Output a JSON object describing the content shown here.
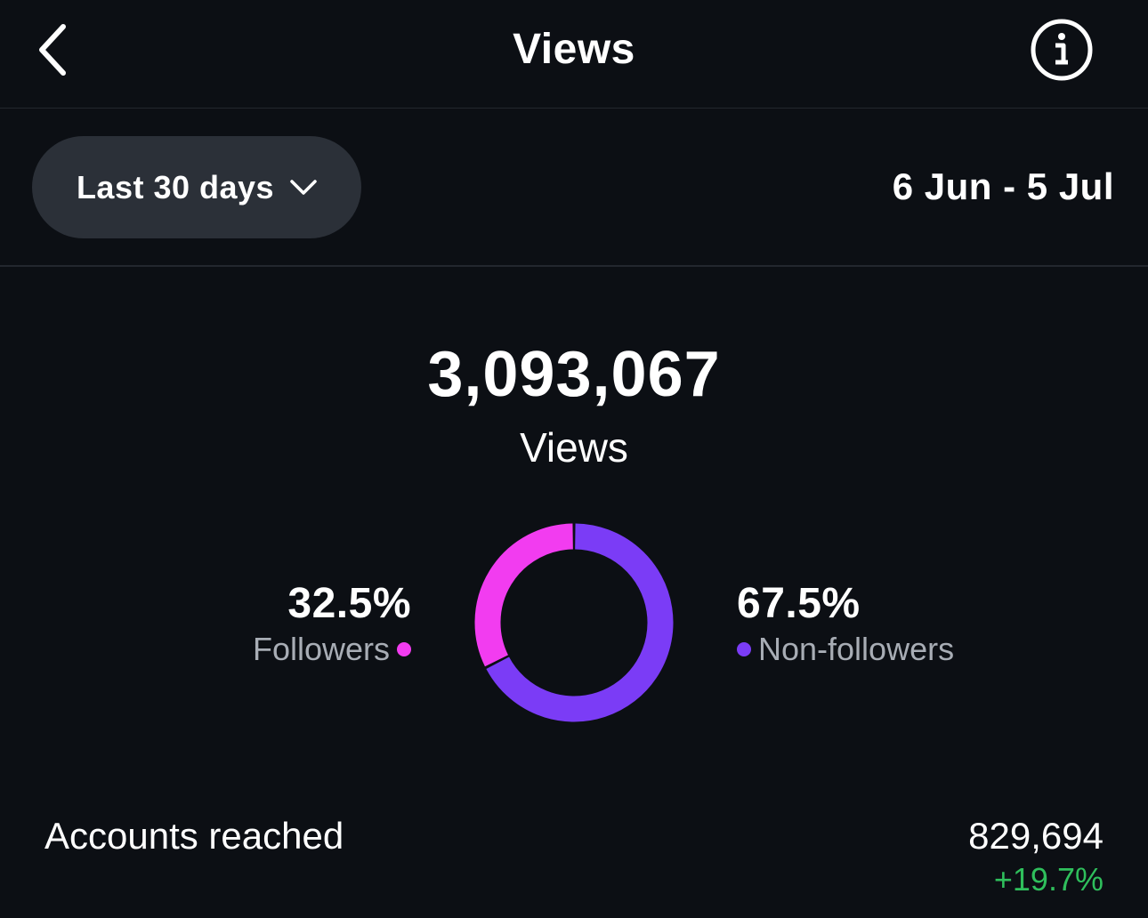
{
  "header": {
    "title": "Views",
    "back_icon": "chevron-left-icon",
    "info_icon": "info-icon"
  },
  "filter": {
    "range_label": "Last 30 days",
    "dropdown_icon": "chevron-down-icon",
    "date_range": "6 Jun - 5 Jul"
  },
  "summary": {
    "total": "3,093,067",
    "label": "Views"
  },
  "chart_data": {
    "type": "pie",
    "categories": [
      "Followers",
      "Non-followers"
    ],
    "values": [
      32.5,
      67.5
    ],
    "labels": [
      "32.5%",
      "67.5%"
    ],
    "colors": [
      "#f23cf0",
      "#7b3cf6"
    ]
  },
  "breakdown": {
    "followers": {
      "pct": "32.5%",
      "label": "Followers"
    },
    "non_followers": {
      "pct": "67.5%",
      "label": "Non-followers"
    }
  },
  "accounts_reached": {
    "label": "Accounts reached",
    "value": "829,694",
    "change": "+19.7%"
  }
}
